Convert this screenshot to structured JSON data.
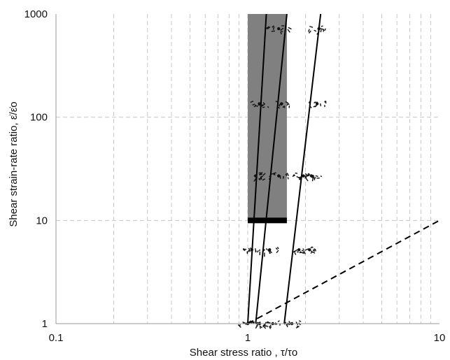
{
  "chart_data": {
    "type": "scatter",
    "xscale": "log",
    "yscale": "log",
    "xlim": [
      0.1,
      10
    ],
    "ylim": [
      1,
      1000
    ],
    "x_ticks": [
      {
        "value": 0.1,
        "label": "0.1"
      },
      {
        "value": 1,
        "label": "1"
      },
      {
        "value": 10,
        "label": "10"
      }
    ],
    "y_ticks": [
      {
        "value": 1,
        "label": "1"
      },
      {
        "value": 10,
        "label": "10"
      },
      {
        "value": 100,
        "label": "100"
      },
      {
        "value": 1000,
        "label": "1000"
      }
    ],
    "xlabel": "Shear stress ratio , τ/τo",
    "ylabel": "Shear strain-rate ratio, ε̇/ε̇o",
    "grid": {
      "major": true,
      "minor": true,
      "style": "dashed"
    },
    "shaded_band": {
      "x": [
        1.0,
        1.6
      ],
      "y": [
        10,
        1000
      ],
      "color": "#808080"
    },
    "threshold_bar": {
      "x": [
        1.0,
        1.6
      ],
      "y": 10,
      "color": "#000000"
    },
    "fit_lines": [
      {
        "points": [
          [
            1.0,
            1
          ],
          [
            1.25,
            1000
          ]
        ],
        "style": "solid"
      },
      {
        "points": [
          [
            1.1,
            1
          ],
          [
            1.6,
            1000
          ]
        ],
        "style": "solid"
      },
      {
        "points": [
          [
            1.55,
            1
          ],
          [
            2.4,
            1000
          ]
        ],
        "style": "solid"
      },
      {
        "points": [
          [
            1.0,
            1
          ],
          [
            10,
            10
          ]
        ],
        "style": "dashed"
      }
    ],
    "clusters": [
      {
        "x": 1.0,
        "y": 1
      },
      {
        "x": 1.15,
        "y": 1
      },
      {
        "x": 1.35,
        "y": 1
      },
      {
        "x": 1.7,
        "y": 1
      },
      {
        "x": 1.05,
        "y": 5.2
      },
      {
        "x": 1.3,
        "y": 5.2
      },
      {
        "x": 1.85,
        "y": 5.2
      },
      {
        "x": 2.1,
        "y": 5.2
      },
      {
        "x": 1.1,
        "y": 27
      },
      {
        "x": 1.45,
        "y": 27
      },
      {
        "x": 1.95,
        "y": 27
      },
      {
        "x": 2.15,
        "y": 27
      },
      {
        "x": 1.15,
        "y": 135
      },
      {
        "x": 1.5,
        "y": 135
      },
      {
        "x": 2.3,
        "y": 135
      },
      {
        "x": 1.45,
        "y": 720
      },
      {
        "x": 2.35,
        "y": 720
      }
    ]
  }
}
